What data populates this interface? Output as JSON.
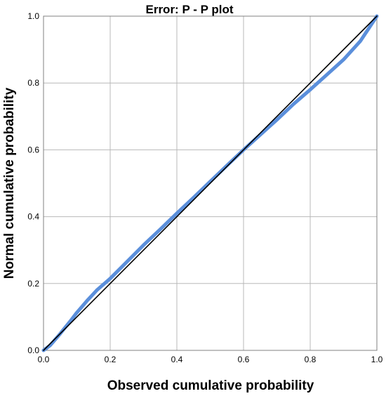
{
  "chart_data": {
    "type": "line",
    "title": "Error: P - P plot",
    "xlabel": "Observed cumulative probability",
    "ylabel": "Normal cumulative probability",
    "xlim": [
      0,
      1
    ],
    "ylim": [
      0,
      1
    ],
    "grid": true,
    "x_ticks": [
      "0.0",
      "0.2",
      "0.4",
      "0.6",
      "0.8",
      "1.0"
    ],
    "y_ticks": [
      "0.0",
      "0.2",
      "0.4",
      "0.6",
      "0.8",
      "1.0"
    ],
    "series": [
      {
        "color": "#5b8fdb",
        "x": [
          0.0,
          0.02,
          0.05,
          0.08,
          0.1,
          0.13,
          0.16,
          0.2,
          0.25,
          0.3,
          0.35,
          0.4,
          0.45,
          0.5,
          0.55,
          0.6,
          0.65,
          0.7,
          0.75,
          0.8,
          0.85,
          0.9,
          0.95,
          1.0
        ],
        "y": [
          0.0,
          0.015,
          0.05,
          0.087,
          0.113,
          0.148,
          0.18,
          0.215,
          0.265,
          0.315,
          0.362,
          0.41,
          0.457,
          0.505,
          0.553,
          0.6,
          0.645,
          0.69,
          0.737,
          0.78,
          0.825,
          0.87,
          0.925,
          1.0
        ]
      },
      {
        "color": "#000000",
        "x": [
          0,
          1
        ],
        "y": [
          0,
          1
        ]
      }
    ]
  }
}
